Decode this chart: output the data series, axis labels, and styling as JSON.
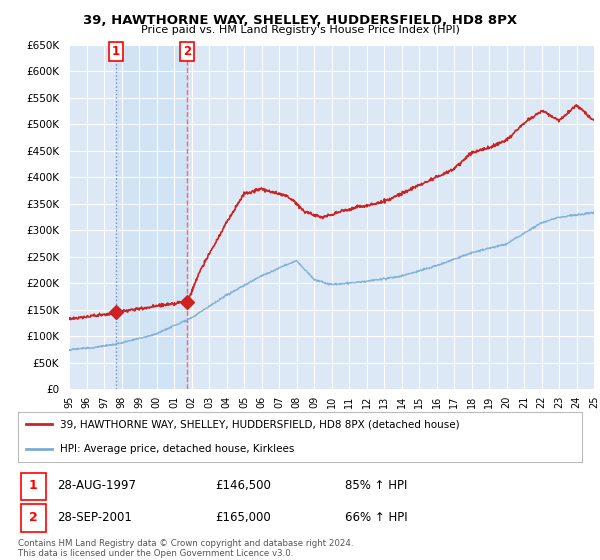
{
  "title": "39, HAWTHORNE WAY, SHELLEY, HUDDERSFIELD, HD8 8PX",
  "subtitle": "Price paid vs. HM Land Registry's House Price Index (HPI)",
  "ytick_values": [
    0,
    50000,
    100000,
    150000,
    200000,
    250000,
    300000,
    350000,
    400000,
    450000,
    500000,
    550000,
    600000,
    650000
  ],
  "ytick_labels": [
    "£0",
    "£50K",
    "£100K",
    "£150K",
    "£200K",
    "£250K",
    "£300K",
    "£350K",
    "£400K",
    "£450K",
    "£500K",
    "£550K",
    "£600K",
    "£650K"
  ],
  "legend_line1": "39, HAWTHORNE WAY, SHELLEY, HUDDERSFIELD, HD8 8PX (detached house)",
  "legend_line2": "HPI: Average price, detached house, Kirklees",
  "transaction1_date": 1997.66,
  "transaction1_price": 146500,
  "transaction1_label": "1",
  "transaction2_date": 2001.75,
  "transaction2_price": 165000,
  "transaction2_label": "2",
  "row1_num": "1",
  "row1_date": "28-AUG-1997",
  "row1_price": "£146,500",
  "row1_hpi": "85% ↑ HPI",
  "row2_num": "2",
  "row2_date": "28-SEP-2001",
  "row2_price": "£165,000",
  "row2_hpi": "66% ↑ HPI",
  "footnote_line1": "Contains HM Land Registry data © Crown copyright and database right 2024.",
  "footnote_line2": "This data is licensed under the Open Government Licence v3.0.",
  "hpi_color": "#7aadd4",
  "price_color": "#cc2222",
  "background_color": "#dce8f5",
  "grid_color": "#ffffff",
  "shade_color": "#d0e4f5",
  "vline1_color": "#9999cc",
  "vline2_color": "#ff6666"
}
